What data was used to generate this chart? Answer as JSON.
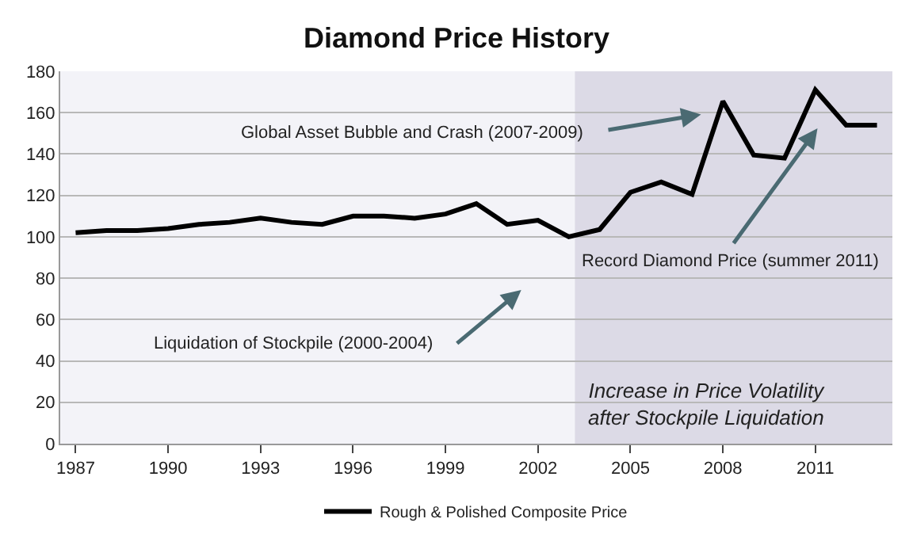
{
  "chart_data": {
    "type": "line",
    "title": "Diamond Price History",
    "x": [
      1987,
      1988,
      1989,
      1990,
      1991,
      1992,
      1993,
      1994,
      1995,
      1996,
      1997,
      1998,
      1999,
      2000,
      2001,
      2002,
      2003,
      2004,
      2005,
      2006,
      2007,
      2008,
      2009,
      2010,
      2011,
      2012,
      2013
    ],
    "series": [
      {
        "name": "Rough & Polished Composite Price",
        "color": "#000000",
        "values": [
          102,
          103,
          103,
          104,
          106,
          107,
          109,
          107,
          106,
          110,
          110,
          109,
          111,
          116,
          106,
          108,
          100,
          103.5,
          121.5,
          126.5,
          120.5,
          165.5,
          139.5,
          138,
          171,
          154,
          154
        ]
      }
    ],
    "xlim": [
      1986.5,
      2013.5
    ],
    "xticks": [
      1987,
      1990,
      1993,
      1996,
      1999,
      2002,
      2005,
      2008,
      2011
    ],
    "ylim": [
      0,
      180
    ],
    "yticks": [
      0,
      20,
      40,
      60,
      80,
      100,
      120,
      140,
      160,
      180
    ],
    "grid": "y",
    "legend": "bottom",
    "marker": "none",
    "line_style": "solid",
    "bands": [
      {
        "axis": "x",
        "from": 2003.2,
        "to": 2013.5,
        "label": "Increase in Price Volatility\nafter Stockpile Liquidation",
        "color": "#dcdae6"
      }
    ],
    "annotations": [
      "Liquidation of Stockpile (2000-2004)",
      "Global Asset Bubble and Crash (2007-2009)",
      "Record Diamond Price (summer 2011)"
    ]
  }
}
